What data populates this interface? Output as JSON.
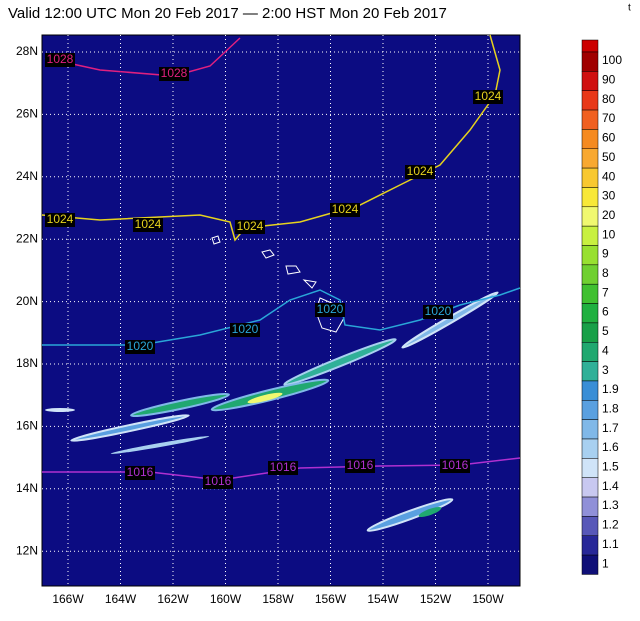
{
  "header": {
    "title": "Valid 12:00 UTC Mon 20 Feb 2017 — 2:00 HST Mon 20 Feb 2017",
    "corner": "t"
  },
  "map": {
    "background": "#0c0c82",
    "lat_labels": [
      "28N",
      "26N",
      "24N",
      "22N",
      "20N",
      "18N",
      "16N",
      "14N",
      "12N"
    ],
    "lon_labels": [
      "166W",
      "164W",
      "162W",
      "160W",
      "158W",
      "156W",
      "154W",
      "152W",
      "150W"
    ],
    "isobars": [
      {
        "color": "#e0207f",
        "labels": [
          "1028",
          "1028"
        ]
      },
      {
        "color": "#e6d21e",
        "labels": [
          "1024",
          "1024",
          "1024",
          "1024",
          "1024",
          "1024"
        ]
      },
      {
        "color": "#2aa6d8",
        "labels": [
          "1020",
          "1020",
          "1020",
          "1020"
        ]
      },
      {
        "color": "#b030d0",
        "labels": [
          "1016",
          "1016",
          "1016",
          "1016",
          "1016"
        ]
      }
    ]
  },
  "colorbar": [
    {
      "label": "100",
      "color": "#a00000"
    },
    {
      "label": "90",
      "color": "#d01010"
    },
    {
      "label": "80",
      "color": "#e83818"
    },
    {
      "label": "70",
      "color": "#f06020"
    },
    {
      "label": "60",
      "color": "#f58a20"
    },
    {
      "label": "50",
      "color": "#f8a830"
    },
    {
      "label": "40",
      "color": "#f8c830"
    },
    {
      "label": "30",
      "color": "#f8e838"
    },
    {
      "label": "20",
      "color": "#f0f870"
    },
    {
      "label": "10",
      "color": "#c8f040"
    },
    {
      "label": "9",
      "color": "#98e030"
    },
    {
      "label": "8",
      "color": "#70d030"
    },
    {
      "label": "7",
      "color": "#40c030"
    },
    {
      "label": "6",
      "color": "#20b040"
    },
    {
      "label": "5",
      "color": "#18a048"
    },
    {
      "label": "4",
      "color": "#20a870"
    },
    {
      "label": "3",
      "color": "#30b098"
    },
    {
      "label": "1.9",
      "color": "#3a8ed6"
    },
    {
      "label": "1.8",
      "color": "#5aa0e0"
    },
    {
      "label": "1.7",
      "color": "#80b8e8"
    },
    {
      "label": "1.6",
      "color": "#a8d0f0"
    },
    {
      "label": "1.5",
      "color": "#d0e4f8"
    },
    {
      "label": "1.4",
      "color": "#c8c8f0"
    },
    {
      "label": "1.3",
      "color": "#9090d8"
    },
    {
      "label": "1.2",
      "color": "#5858b8"
    },
    {
      "label": "1.1",
      "color": "#282898"
    },
    {
      "label": "1",
      "color": "#101078"
    }
  ]
}
